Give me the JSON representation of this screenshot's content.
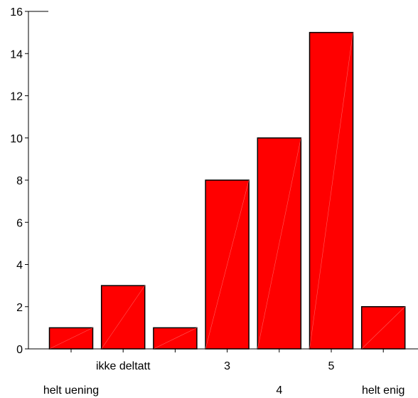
{
  "chart_data": {
    "type": "bar",
    "categories": [
      "helt uening",
      "ikke deltatt",
      "",
      "3",
      "4",
      "5",
      "helt enig"
    ],
    "values": [
      1,
      3,
      1,
      8,
      10,
      15,
      2
    ],
    "ylim": [
      0,
      16
    ],
    "yticks": [
      0,
      2,
      4,
      6,
      8,
      10,
      12,
      14,
      16
    ],
    "grid": false,
    "legend": "none",
    "bar_color": "#ff0000",
    "edge_color": "#000000"
  }
}
